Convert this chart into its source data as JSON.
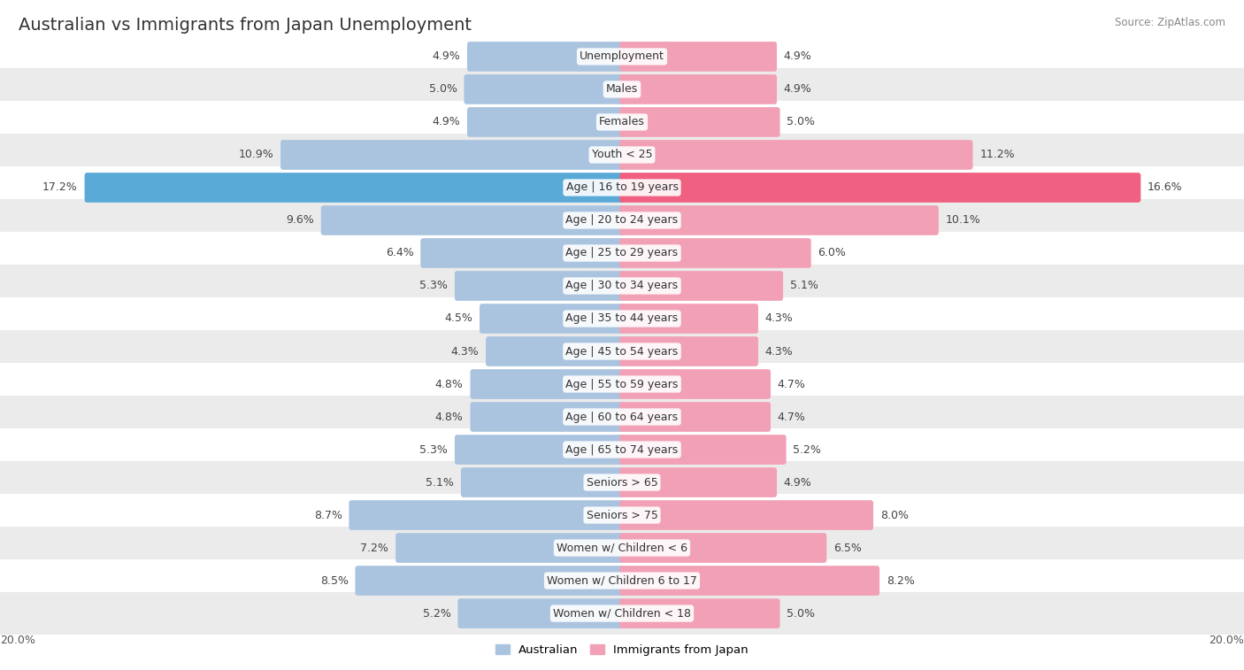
{
  "title": "Australian vs Immigrants from Japan Unemployment",
  "source": "Source: ZipAtlas.com",
  "categories": [
    "Unemployment",
    "Males",
    "Females",
    "Youth < 25",
    "Age | 16 to 19 years",
    "Age | 20 to 24 years",
    "Age | 25 to 29 years",
    "Age | 30 to 34 years",
    "Age | 35 to 44 years",
    "Age | 45 to 54 years",
    "Age | 55 to 59 years",
    "Age | 60 to 64 years",
    "Age | 65 to 74 years",
    "Seniors > 65",
    "Seniors > 75",
    "Women w/ Children < 6",
    "Women w/ Children 6 to 17",
    "Women w/ Children < 18"
  ],
  "australian": [
    4.9,
    5.0,
    4.9,
    10.9,
    17.2,
    9.6,
    6.4,
    5.3,
    4.5,
    4.3,
    4.8,
    4.8,
    5.3,
    5.1,
    8.7,
    7.2,
    8.5,
    5.2
  ],
  "immigrants": [
    4.9,
    4.9,
    5.0,
    11.2,
    16.6,
    10.1,
    6.0,
    5.1,
    4.3,
    4.3,
    4.7,
    4.7,
    5.2,
    4.9,
    8.0,
    6.5,
    8.2,
    5.0
  ],
  "australian_color": "#aac4e0",
  "immigrants_color": "#f2a0b5",
  "australian_highlight": "#5aaad8",
  "immigrants_highlight": "#f06080",
  "row_bg_light": "#ebebeb",
  "row_bg_dark": "#f7f7f7",
  "max_val": 20.0,
  "legend_australian": "Australian",
  "legend_immigrants": "Immigrants from Japan",
  "title_fontsize": 14,
  "label_fontsize": 9,
  "value_fontsize": 9
}
